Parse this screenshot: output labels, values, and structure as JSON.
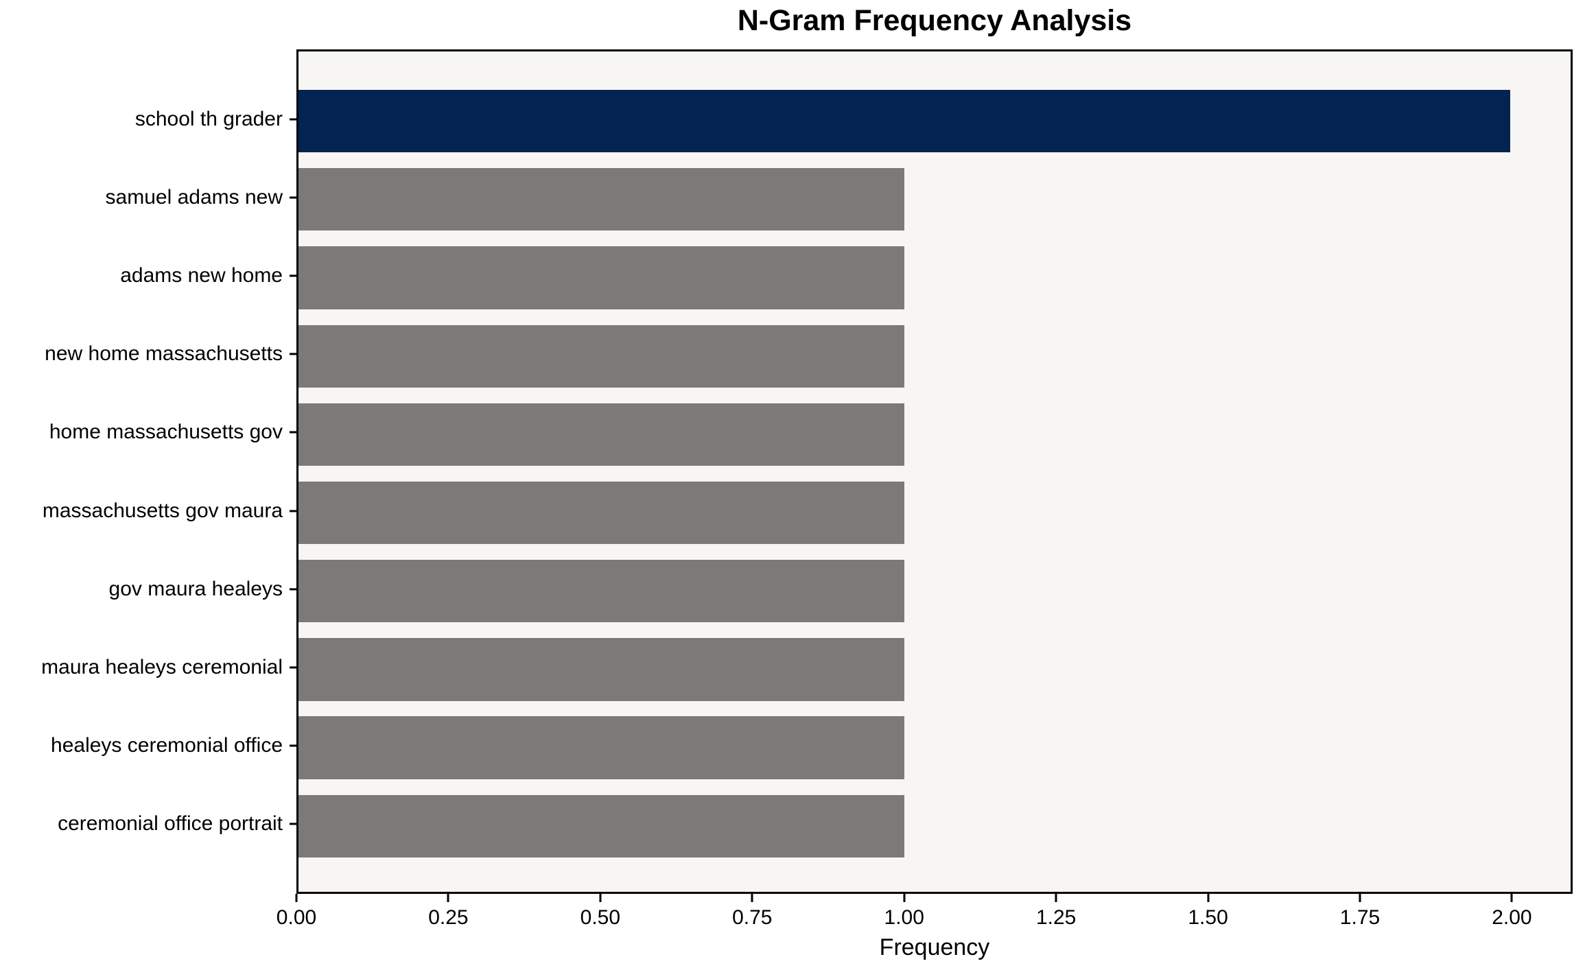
{
  "title": "N-Gram Frequency Analysis",
  "x_axis_label": "Frequency",
  "colors": {
    "highlight_bar": "#032450",
    "default_bar": "#7b7a76",
    "plot_background": "#f7f6f4",
    "figure_background": "#ffffff",
    "axis": "#000000",
    "text": "#000000"
  },
  "chart_data": {
    "type": "bar",
    "orientation": "horizontal",
    "title": "N-Gram Frequency Analysis",
    "xlabel": "Frequency",
    "ylabel": "",
    "categories": [
      "school th grader",
      "samuel adams new",
      "adams new home",
      "new home massachusetts",
      "home massachusetts gov",
      "massachusetts gov maura",
      "gov maura healeys",
      "maura healeys ceremonial",
      "healeys ceremonial office",
      "ceremonial office portrait"
    ],
    "values": [
      2,
      1,
      1,
      1,
      1,
      1,
      1,
      1,
      1,
      1
    ],
    "bar_colors": [
      "#032450",
      "#7b7a76",
      "#7b7a76",
      "#7b7a76",
      "#7b7a76",
      "#7b7a76",
      "#7b7a76",
      "#7b7a76",
      "#7b7a76",
      "#7b7a76"
    ],
    "xlim": [
      0,
      2.1
    ],
    "xticks": [
      0,
      0.25,
      0.5,
      0.75,
      1.0,
      1.25,
      1.5,
      1.75,
      2.0
    ],
    "xtick_labels": [
      "0.00",
      "0.25",
      "0.50",
      "0.75",
      "1.00",
      "1.25",
      "1.50",
      "1.75",
      "2.00"
    ],
    "grid": false,
    "legend": null
  }
}
